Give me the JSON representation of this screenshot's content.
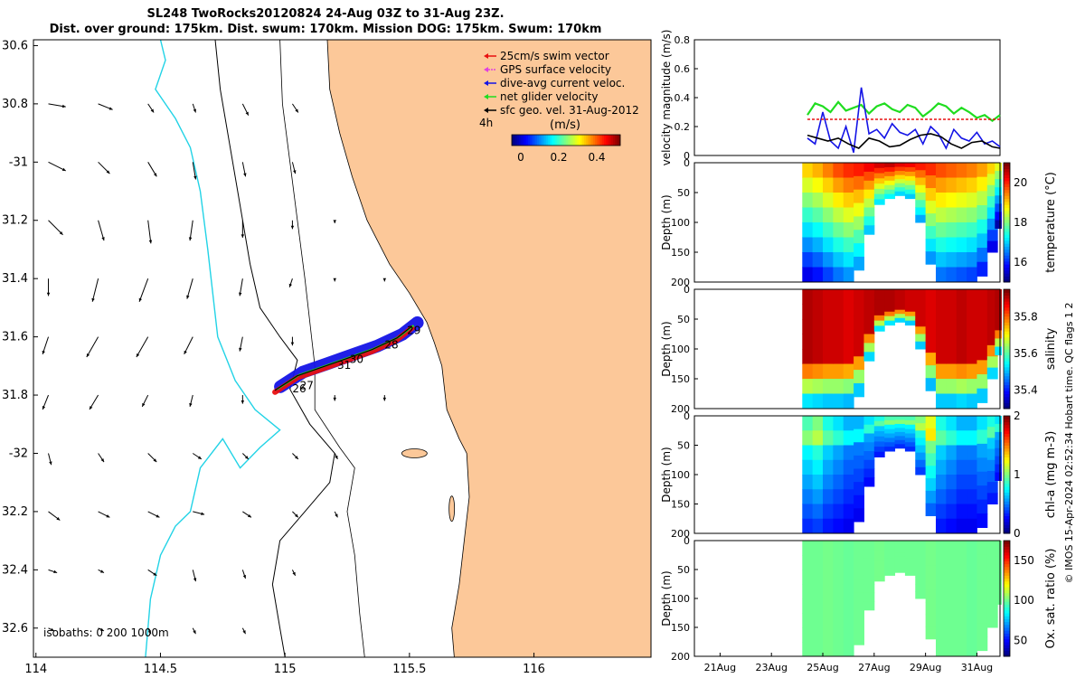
{
  "title_line1": "SL248 TwoRocks20120824 24-Aug 03Z to 31-Aug 23Z.",
  "title_line2": "Dist. over ground: 175km. Dist. swum: 170km. Mission DOG: 175km. Swum: 170km",
  "colors": {
    "land": "#FCC899",
    "coast": "#000000",
    "isobath_1000": "#22D3E6",
    "swim": "#E81010",
    "gps": "#E040E0",
    "dive": "#1414E6",
    "net": "#20DD20",
    "geo": "#000000"
  },
  "chart_data": [
    {
      "type": "map",
      "title": "SL248 TwoRocks20120824 24-Aug 03Z to 31-Aug 23Z.",
      "xlim": [
        113.99,
        116.47
      ],
      "ylim": [
        -32.7,
        -30.58
      ],
      "x_ticks": [
        114,
        114.5,
        115,
        115.5,
        116
      ],
      "x_tick_labels": [
        "114",
        "114.5",
        "115",
        "115.5",
        "116"
      ],
      "y_ticks": [
        -30.6,
        -30.8,
        -31,
        -31.2,
        -31.4,
        -31.6,
        -31.8,
        -32,
        -32.2,
        -32.4,
        -32.6
      ],
      "y_tick_labels": [
        "30.6",
        "30.8",
        "-31",
        "31.2",
        "31.4",
        "31.6",
        "31.8",
        "-32",
        "32.2",
        "32.4",
        "32.6"
      ],
      "legend": {
        "position": "top-right",
        "entries": [
          "25cm/s swim vector",
          "GPS surface velocity",
          "dive-avg current veloc.",
          "net glider velocity",
          "sfc geo. vel. 31-Aug-2012"
        ],
        "time_step_label": "4h",
        "colorbar_label": "(m/s)",
        "colorbar_ticks": [
          "0",
          "0.2",
          "0.4"
        ]
      },
      "isobaths_label": "isobaths: 0   200  1000m",
      "day_labels": [
        {
          "text": "26",
          "lon": 115.03,
          "lat": -31.79
        },
        {
          "text": "27",
          "lon": 115.06,
          "lat": -31.78
        },
        {
          "text": "28",
          "lon": 115.4,
          "lat": -31.64
        },
        {
          "text": "29",
          "lon": 115.49,
          "lat": -31.59
        },
        {
          "text": "30",
          "lon": 115.26,
          "lat": -31.69
        },
        {
          "text": "31",
          "lon": 115.21,
          "lat": -31.71
        }
      ],
      "glider_track": [
        [
          114.96,
          -31.79
        ],
        [
          115.05,
          -31.74
        ],
        [
          115.15,
          -31.71
        ],
        [
          115.25,
          -31.68
        ],
        [
          115.35,
          -31.65
        ],
        [
          115.45,
          -31.61
        ],
        [
          115.51,
          -31.57
        ]
      ],
      "current_vectors": [
        {
          "lon": 114.05,
          "lat": -30.8,
          "u": 0.06,
          "v": -0.01
        },
        {
          "lon": 114.25,
          "lat": -30.8,
          "u": 0.05,
          "v": -0.02
        },
        {
          "lon": 114.45,
          "lat": -30.8,
          "u": 0.02,
          "v": -0.03
        },
        {
          "lon": 114.63,
          "lat": -30.8,
          "u": 0.01,
          "v": -0.03
        },
        {
          "lon": 114.83,
          "lat": -30.8,
          "u": 0.02,
          "v": -0.04
        },
        {
          "lon": 114.05,
          "lat": -31.0,
          "u": 0.06,
          "v": -0.03
        },
        {
          "lon": 114.25,
          "lat": -31.0,
          "u": 0.04,
          "v": -0.04
        },
        {
          "lon": 114.45,
          "lat": -31.0,
          "u": 0.03,
          "v": -0.05
        },
        {
          "lon": 114.63,
          "lat": -31.0,
          "u": 0.01,
          "v": -0.06
        },
        {
          "lon": 114.83,
          "lat": -31.0,
          "u": 0.01,
          "v": -0.05
        },
        {
          "lon": 114.05,
          "lat": -31.2,
          "u": 0.05,
          "v": -0.05
        },
        {
          "lon": 114.25,
          "lat": -31.2,
          "u": 0.02,
          "v": -0.07
        },
        {
          "lon": 114.45,
          "lat": -31.2,
          "u": 0.01,
          "v": -0.08
        },
        {
          "lon": 114.63,
          "lat": -31.2,
          "u": -0.01,
          "v": -0.07
        },
        {
          "lon": 114.83,
          "lat": -31.2,
          "u": 0.0,
          "v": -0.06
        },
        {
          "lon": 114.05,
          "lat": -31.4,
          "u": 0.0,
          "v": -0.06
        },
        {
          "lon": 114.25,
          "lat": -31.4,
          "u": -0.02,
          "v": -0.08
        },
        {
          "lon": 114.45,
          "lat": -31.4,
          "u": -0.03,
          "v": -0.08
        },
        {
          "lon": 114.63,
          "lat": -31.4,
          "u": -0.02,
          "v": -0.07
        },
        {
          "lon": 114.83,
          "lat": -31.4,
          "u": -0.01,
          "v": -0.06
        },
        {
          "lon": 114.05,
          "lat": -31.6,
          "u": -0.02,
          "v": -0.06
        },
        {
          "lon": 114.25,
          "lat": -31.6,
          "u": -0.04,
          "v": -0.07
        },
        {
          "lon": 114.45,
          "lat": -31.6,
          "u": -0.04,
          "v": -0.07
        },
        {
          "lon": 114.63,
          "lat": -31.6,
          "u": -0.03,
          "v": -0.06
        },
        {
          "lon": 114.83,
          "lat": -31.6,
          "u": -0.01,
          "v": -0.05
        },
        {
          "lon": 114.05,
          "lat": -31.8,
          "u": -0.02,
          "v": -0.05
        },
        {
          "lon": 114.25,
          "lat": -31.8,
          "u": -0.03,
          "v": -0.05
        },
        {
          "lon": 114.45,
          "lat": -31.8,
          "u": -0.02,
          "v": -0.04
        },
        {
          "lon": 114.63,
          "lat": -31.8,
          "u": -0.01,
          "v": -0.04
        },
        {
          "lon": 114.83,
          "lat": -31.8,
          "u": 0.0,
          "v": -0.03
        },
        {
          "lon": 114.05,
          "lat": -32.0,
          "u": 0.01,
          "v": -0.04
        },
        {
          "lon": 114.25,
          "lat": -32.0,
          "u": 0.02,
          "v": -0.03
        },
        {
          "lon": 114.45,
          "lat": -32.0,
          "u": 0.03,
          "v": -0.03
        },
        {
          "lon": 114.63,
          "lat": -32.0,
          "u": 0.03,
          "v": -0.02
        },
        {
          "lon": 114.83,
          "lat": -32.0,
          "u": 0.02,
          "v": -0.02
        },
        {
          "lon": 114.05,
          "lat": -32.2,
          "u": 0.04,
          "v": -0.03
        },
        {
          "lon": 114.25,
          "lat": -32.2,
          "u": 0.04,
          "v": -0.02
        },
        {
          "lon": 114.45,
          "lat": -32.2,
          "u": 0.04,
          "v": -0.02
        },
        {
          "lon": 114.63,
          "lat": -32.2,
          "u": 0.04,
          "v": -0.01
        },
        {
          "lon": 114.83,
          "lat": -32.2,
          "u": 0.03,
          "v": -0.02
        },
        {
          "lon": 114.05,
          "lat": -32.4,
          "u": 0.03,
          "v": -0.01
        },
        {
          "lon": 114.25,
          "lat": -32.4,
          "u": 0.02,
          "v": -0.01
        },
        {
          "lon": 114.45,
          "lat": -32.4,
          "u": 0.03,
          "v": -0.02
        },
        {
          "lon": 114.63,
          "lat": -32.4,
          "u": 0.01,
          "v": -0.04
        },
        {
          "lon": 114.83,
          "lat": -32.4,
          "u": 0.01,
          "v": -0.03
        },
        {
          "lon": 114.05,
          "lat": -32.6,
          "u": 0.02,
          "v": -0.01
        },
        {
          "lon": 114.25,
          "lat": -32.6,
          "u": 0.02,
          "v": -0.01
        },
        {
          "lon": 114.45,
          "lat": -32.6,
          "u": 0.01,
          "v": -0.02
        },
        {
          "lon": 114.63,
          "lat": -32.6,
          "u": 0.01,
          "v": -0.02
        },
        {
          "lon": 114.83,
          "lat": -32.6,
          "u": 0.01,
          "v": -0.02
        },
        {
          "lon": 115.03,
          "lat": -30.8,
          "u": 0.02,
          "v": -0.03
        },
        {
          "lon": 115.03,
          "lat": -31.0,
          "u": 0.01,
          "v": -0.04
        },
        {
          "lon": 115.03,
          "lat": -31.2,
          "u": 0.0,
          "v": -0.03
        },
        {
          "lon": 115.03,
          "lat": -31.4,
          "u": -0.01,
          "v": -0.03
        },
        {
          "lon": 115.03,
          "lat": -31.6,
          "u": 0.0,
          "v": -0.03
        },
        {
          "lon": 115.2,
          "lat": -31.2,
          "u": 0.0,
          "v": -0.01
        },
        {
          "lon": 115.2,
          "lat": -31.4,
          "u": 0.0,
          "v": -0.01
        },
        {
          "lon": 115.2,
          "lat": -31.8,
          "u": 0.0,
          "v": -0.02
        },
        {
          "lon": 115.4,
          "lat": -31.8,
          "u": 0.0,
          "v": -0.02
        },
        {
          "lon": 115.4,
          "lat": -31.4,
          "u": 0.0,
          "v": -0.01
        },
        {
          "lon": 115.03,
          "lat": -32.0,
          "u": 0.02,
          "v": -0.02
        },
        {
          "lon": 115.2,
          "lat": -32.0,
          "u": 0.01,
          "v": -0.02
        },
        {
          "lon": 115.03,
          "lat": -32.2,
          "u": 0.02,
          "v": -0.02
        },
        {
          "lon": 115.2,
          "lat": -32.2,
          "u": 0.01,
          "v": -0.02
        },
        {
          "lon": 115.03,
          "lat": -32.4,
          "u": 0.01,
          "v": -0.02
        }
      ]
    },
    {
      "type": "line",
      "ylabel": "velocity magnitude (m/s)",
      "ylim": [
        0,
        0.8
      ],
      "y_ticks": [
        "0",
        "0.2",
        "0.4",
        "0.6",
        "0.8"
      ],
      "x_range_days": [
        20.0,
        31.9
      ],
      "series": [
        {
          "name": "net glider velocity",
          "color": "#20DD20",
          "x": [
            24.4,
            24.7,
            25.0,
            25.3,
            25.6,
            25.9,
            26.2,
            26.5,
            26.8,
            27.1,
            27.4,
            27.7,
            28.0,
            28.3,
            28.6,
            28.9,
            29.2,
            29.5,
            29.8,
            30.1,
            30.4,
            30.7,
            31.0,
            31.3,
            31.6,
            31.9
          ],
          "values": [
            0.28,
            0.36,
            0.34,
            0.3,
            0.37,
            0.31,
            0.33,
            0.35,
            0.29,
            0.34,
            0.36,
            0.32,
            0.3,
            0.35,
            0.33,
            0.27,
            0.31,
            0.36,
            0.34,
            0.29,
            0.33,
            0.3,
            0.26,
            0.28,
            0.24,
            0.28
          ]
        },
        {
          "name": "dive-avg current veloc.",
          "color": "#1414E6",
          "x": [
            24.4,
            24.7,
            25.0,
            25.3,
            25.6,
            25.9,
            26.2,
            26.5,
            26.8,
            27.1,
            27.4,
            27.7,
            28.0,
            28.3,
            28.6,
            28.9,
            29.2,
            29.5,
            29.8,
            30.1,
            30.4,
            30.7,
            31.0,
            31.3,
            31.6,
            31.9
          ],
          "values": [
            0.12,
            0.08,
            0.3,
            0.1,
            0.05,
            0.2,
            0.02,
            0.47,
            0.15,
            0.18,
            0.12,
            0.22,
            0.16,
            0.14,
            0.18,
            0.08,
            0.2,
            0.15,
            0.05,
            0.18,
            0.12,
            0.1,
            0.16,
            0.08,
            0.1,
            0.06
          ]
        },
        {
          "name": "25cm/s swim vector",
          "color": "#E81010",
          "x": [
            24.4,
            25.0,
            26.0,
            27.0,
            28.0,
            29.0,
            30.0,
            31.0,
            31.9
          ],
          "values": [
            0.25,
            0.25,
            0.25,
            0.25,
            0.25,
            0.25,
            0.25,
            0.25,
            0.25
          ]
        },
        {
          "name": "sfc geo. vel. 31-Aug-2012",
          "color": "#000000",
          "x": [
            24.4,
            24.8,
            25.2,
            25.6,
            26.0,
            26.4,
            26.8,
            27.2,
            27.6,
            28.0,
            28.4,
            28.8,
            29.2,
            29.6,
            30.0,
            30.4,
            30.8,
            31.2,
            31.6,
            31.9
          ],
          "values": [
            0.14,
            0.12,
            0.1,
            0.12,
            0.08,
            0.05,
            0.12,
            0.1,
            0.06,
            0.07,
            0.11,
            0.14,
            0.15,
            0.13,
            0.08,
            0.05,
            0.09,
            0.1,
            0.06,
            0.05
          ]
        }
      ]
    },
    {
      "type": "heatmap",
      "variable": "temperature",
      "colorbar_label": "temperature (°C)",
      "colorbar_ticks": [
        "16",
        "18",
        "20"
      ],
      "clim": [
        15,
        21
      ],
      "ylabel": "Depth (m)",
      "y_ticks": [
        "0",
        "50",
        "100",
        "150",
        "200"
      ],
      "columns_day": [
        24.4,
        24.8,
        25.2,
        25.6,
        26.0,
        26.4,
        26.8,
        27.2,
        27.6,
        28.0,
        28.4,
        28.8,
        29.2,
        29.6,
        30.0,
        30.4,
        30.8,
        31.2,
        31.6,
        31.9
      ],
      "max_depth_m": [
        200,
        200,
        200,
        200,
        200,
        180,
        120,
        70,
        60,
        55,
        60,
        100,
        170,
        200,
        200,
        200,
        200,
        190,
        150,
        110
      ],
      "values": [
        19.0,
        19.2,
        19.5,
        19.8,
        20.0,
        20.1,
        20.3,
        20.5,
        20.6,
        20.4,
        20.3,
        20.1,
        20.0,
        19.8,
        19.7,
        19.6,
        19.5,
        19.3,
        19.0,
        18.6
      ]
    },
    {
      "type": "heatmap",
      "variable": "salinity",
      "colorbar_label": "salinity",
      "colorbar_ticks": [
        "35.4",
        "35.6",
        "35.8"
      ],
      "clim": [
        35.3,
        35.95
      ],
      "ylabel": "Depth (m)",
      "y_ticks": [
        "0",
        "50",
        "100",
        "150",
        "200"
      ],
      "columns_day": [
        24.4,
        24.8,
        25.2,
        25.6,
        26.0,
        26.4,
        26.8,
        27.2,
        27.6,
        28.0,
        28.4,
        28.8,
        29.2,
        29.6,
        30.0,
        30.4,
        30.8,
        31.2,
        31.6,
        31.9
      ],
      "max_depth_m": [
        200,
        200,
        200,
        200,
        200,
        180,
        120,
        70,
        60,
        55,
        60,
        100,
        170,
        200,
        200,
        200,
        200,
        190,
        150,
        110
      ],
      "values": [
        35.92,
        35.91,
        35.9,
        35.9,
        35.89,
        35.9,
        35.91,
        35.92,
        35.92,
        35.91,
        35.9,
        35.9,
        35.89,
        35.9,
        35.9,
        35.91,
        35.9,
        35.9,
        35.91,
        35.92
      ]
    },
    {
      "type": "heatmap",
      "variable": "chl-a",
      "colorbar_label": "chl-a (mg m-3)",
      "colorbar_ticks": [
        "0",
        "1",
        "2"
      ],
      "clim": [
        0,
        2
      ],
      "ylabel": "Depth (m)",
      "y_ticks": [
        "0",
        "50",
        "100",
        "150",
        "200"
      ],
      "columns_day": [
        24.4,
        24.8,
        25.2,
        25.6,
        26.0,
        26.4,
        26.8,
        27.2,
        27.6,
        28.0,
        28.4,
        28.8,
        29.2,
        29.6,
        30.0,
        30.4,
        30.8,
        31.2,
        31.6,
        31.9
      ],
      "max_depth_m": [
        200,
        200,
        200,
        200,
        200,
        180,
        120,
        70,
        60,
        55,
        60,
        100,
        170,
        200,
        200,
        200,
        200,
        190,
        150,
        110
      ],
      "values": [
        0.9,
        1.0,
        0.8,
        0.7,
        0.6,
        0.6,
        0.7,
        0.8,
        0.9,
        0.9,
        0.9,
        1.0,
        1.2,
        0.8,
        0.7,
        0.6,
        0.6,
        0.7,
        0.8,
        0.7
      ]
    },
    {
      "type": "heatmap",
      "variable": "oxygen saturation",
      "colorbar_label": "Ox. sat. ratio (%)",
      "colorbar_ticks": [
        "50",
        "100",
        "150"
      ],
      "clim": [
        30,
        175
      ],
      "ylabel": "Depth (m)",
      "y_ticks": [
        "0",
        "50",
        "100",
        "150",
        "200"
      ],
      "x_tick_labels": [
        "21Aug",
        "23Aug",
        "25Aug",
        "27Aug",
        "29Aug",
        "31Aug"
      ],
      "x_tick_days": [
        21,
        23,
        25,
        27,
        29,
        31
      ],
      "columns_day": [
        24.4,
        24.8,
        25.2,
        25.6,
        26.0,
        26.4,
        26.8,
        27.2,
        27.6,
        28.0,
        28.4,
        28.8,
        29.2,
        29.6,
        30.0,
        30.4,
        30.8,
        31.2,
        31.6,
        31.9
      ],
      "max_depth_m": [
        200,
        200,
        200,
        200,
        200,
        180,
        120,
        70,
        60,
        55,
        60,
        100,
        170,
        200,
        200,
        200,
        200,
        190,
        150,
        110
      ],
      "values": [
        100,
        100,
        101,
        100,
        99,
        100,
        100,
        101,
        100,
        100,
        100,
        100,
        101,
        100,
        100,
        100,
        99,
        100,
        100,
        100
      ]
    }
  ],
  "side_note": "© IMOS 15-Apr-2024 02:52:34 Hobart time. QC flags 1  2"
}
